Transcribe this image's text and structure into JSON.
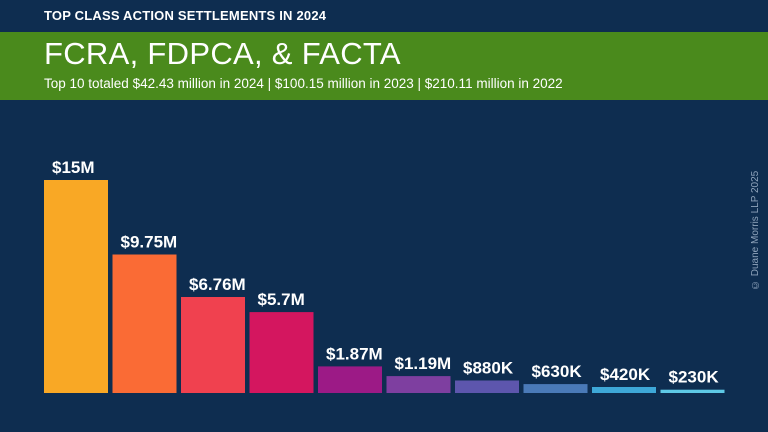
{
  "header": {
    "kicker": "TOP CLASS ACTION SETTLEMENTS IN 2024",
    "title": "FCRA, FDPCA, & FACTA",
    "subtitle": "Top 10 totaled $42.43 million in 2024 | $100.15 million in 2023 | $210.11 million in 2022"
  },
  "copyright": "© Duane Morris LLP 2025",
  "colors": {
    "background": "#0e2d50",
    "banner": "#4a8a1c"
  },
  "chart_data": {
    "type": "bar",
    "title": "FCRA, FDPCA, & FACTA",
    "subtitle": "Top 10 totaled $42.43 million in 2024 | $100.15 million in 2023 | $210.11 million in 2022",
    "xlabel": "",
    "ylabel": "",
    "ylim": [
      0,
      15
    ],
    "grid": false,
    "values": [
      15,
      9.75,
      6.76,
      5.7,
      1.87,
      1.19,
      0.88,
      0.63,
      0.42,
      0.23
    ],
    "labels": [
      "$15M",
      "$9.75M",
      "$6.76M",
      "$5.7M",
      "$1.87M",
      "$1.19M",
      "$880K",
      "$630K",
      "$420K",
      "$230K"
    ],
    "colors": [
      "#f9a825",
      "#fa6b35",
      "#f0414f",
      "#d4165f",
      "#9c1a86",
      "#7e3fa0",
      "#5d56ad",
      "#4a7ab8",
      "#3ea8d8",
      "#5ec9e6"
    ]
  }
}
